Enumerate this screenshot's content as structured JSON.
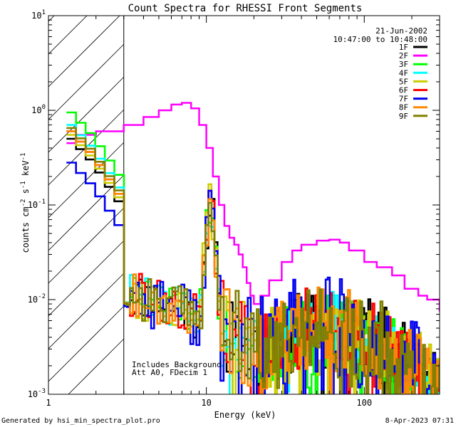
{
  "chart_data": {
    "type": "line",
    "title": "Count Spectra for RHESSI Front Segments",
    "xlabel": "Energy (keV)",
    "ylabel_parts": [
      "counts cm",
      "-2",
      " s",
      "-1",
      " keV",
      "-1"
    ],
    "xscale": "log",
    "yscale": "log",
    "xlim": [
      1,
      300
    ],
    "ylim": [
      0.001,
      10
    ],
    "x_ticks": [
      {
        "value": 1,
        "label": "1"
      },
      {
        "value": 10,
        "label": "10"
      },
      {
        "value": 100,
        "label": "100"
      }
    ],
    "y_ticks": [
      {
        "value": 0.001,
        "base": "10",
        "exp": "-3"
      },
      {
        "value": 0.01,
        "base": "10",
        "exp": "-2"
      },
      {
        "value": 0.1,
        "base": "10",
        "exp": "-1"
      },
      {
        "value": 1,
        "base": "10",
        "exp": "0"
      },
      {
        "value": 10,
        "base": "10",
        "exp": "1"
      }
    ],
    "legend": {
      "position": "top-right",
      "date": "21-Jun-2002",
      "time_range": "10:47:00 to 10:48:00"
    },
    "shaded_region": {
      "x_from": 1,
      "x_to": 3,
      "style": "diagonal-hatch"
    },
    "annotations": [
      "Includes Background",
      "Att A0, FDecim 1"
    ],
    "footer_left": "Generated by hsi_min_spectra_plot.pro",
    "footer_right": "8-Apr-2023 07:31",
    "series": [
      {
        "name": "1F",
        "color": "#000000",
        "low": 0.5,
        "noise_mult": 1.0,
        "seed": 11
      },
      {
        "name": "2F",
        "color": "#ff00ff",
        "low": 0.5,
        "noise_mult": 0.0,
        "seed": 22,
        "points": [
          [
            1.3,
            0.45
          ],
          [
            1.5,
            0.55
          ],
          [
            2,
            0.6
          ],
          [
            3,
            0.7
          ],
          [
            4,
            0.85
          ],
          [
            5,
            1.0
          ],
          [
            6,
            1.15
          ],
          [
            7,
            1.2
          ],
          [
            8,
            1.05
          ],
          [
            9,
            0.7
          ],
          [
            10,
            0.4
          ],
          [
            11,
            0.2
          ],
          [
            12,
            0.1
          ],
          [
            13,
            0.06
          ],
          [
            14,
            0.045
          ],
          [
            15,
            0.038
          ],
          [
            16,
            0.03
          ],
          [
            17,
            0.022
          ],
          [
            18,
            0.015
          ],
          [
            19,
            0.011
          ],
          [
            20,
            0.009
          ],
          [
            22,
            0.011
          ],
          [
            25,
            0.016
          ],
          [
            30,
            0.025
          ],
          [
            35,
            0.033
          ],
          [
            40,
            0.038
          ],
          [
            50,
            0.042
          ],
          [
            60,
            0.043
          ],
          [
            70,
            0.04
          ],
          [
            80,
            0.033
          ],
          [
            100,
            0.025
          ],
          [
            120,
            0.022
          ],
          [
            150,
            0.018
          ],
          [
            180,
            0.013
          ],
          [
            220,
            0.011
          ],
          [
            250,
            0.01
          ],
          [
            300,
            0.0075
          ]
        ]
      },
      {
        "name": "3F",
        "color": "#00ff00",
        "low": 0.95,
        "noise_mult": 0.9,
        "seed": 33
      },
      {
        "name": "4F",
        "color": "#00ffff",
        "low": 0.7,
        "noise_mult": 0.9,
        "seed": 44
      },
      {
        "name": "5F",
        "color": "#cccc00",
        "low": 0.55,
        "noise_mult": 1.1,
        "seed": 55
      },
      {
        "name": "6F",
        "color": "#ff0000",
        "low": 0.6,
        "noise_mult": 1.0,
        "seed": 66
      },
      {
        "name": "7F",
        "color": "#0000ee",
        "low": 0.28,
        "noise_mult": 1.3,
        "seed": 77
      },
      {
        "name": "8F",
        "color": "#ff8800",
        "low": 0.6,
        "noise_mult": 1.0,
        "seed": 88
      },
      {
        "name": "9F",
        "color": "#808000",
        "low": 0.65,
        "noise_mult": 1.1,
        "seed": 99
      }
    ]
  }
}
